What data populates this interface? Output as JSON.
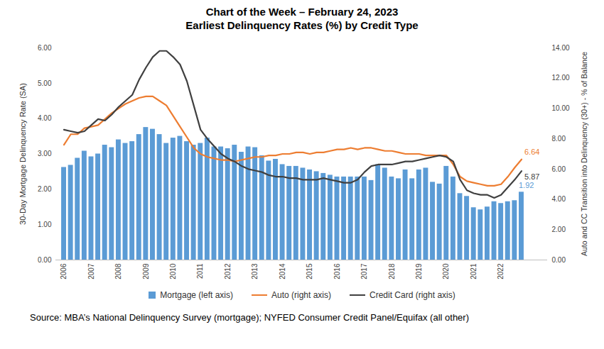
{
  "chart_data": {
    "type": "bar",
    "title": "Chart of the Week – February 24, 2023",
    "subtitle": "Earliest Delinquency Rates (%) by Credit Type",
    "ylabel": "30-Day Mortgage Delinquency Rate (SA)",
    "y2label": "Auto and CC Transition into Delinquency (30+) - % of Balance",
    "caption": "Source: MBA’s National Delinquency Survey (mortgage); NYFED Consumer Credit Panel/Equifax (all other)",
    "x": [
      2006,
      2006.25,
      2006.5,
      2006.75,
      2007,
      2007.25,
      2007.5,
      2007.75,
      2008,
      2008.25,
      2008.5,
      2008.75,
      2009,
      2009.25,
      2009.5,
      2009.75,
      2010,
      2010.25,
      2010.5,
      2010.75,
      2011,
      2011.25,
      2011.5,
      2011.75,
      2012,
      2012.25,
      2012.5,
      2012.75,
      2013,
      2013.25,
      2013.5,
      2013.75,
      2014,
      2014.25,
      2014.5,
      2014.75,
      2015,
      2015.25,
      2015.5,
      2015.75,
      2016,
      2016.25,
      2016.5,
      2016.75,
      2017,
      2017.25,
      2017.5,
      2017.75,
      2018,
      2018.25,
      2018.5,
      2018.75,
      2019,
      2019.25,
      2019.5,
      2019.75,
      2020,
      2020.25,
      2020.5,
      2020.75,
      2021,
      2021.25,
      2021.5,
      2021.75,
      2022,
      2022.25,
      2022.5,
      2022.75
    ],
    "series": [
      {
        "name": "Mortgage (left axis)",
        "type": "bar",
        "color": "#5b9bd5",
        "values": [
          2.62,
          2.68,
          2.88,
          3.08,
          2.92,
          3.0,
          3.25,
          3.18,
          3.4,
          3.3,
          3.35,
          3.55,
          3.75,
          3.7,
          3.55,
          3.3,
          3.45,
          3.5,
          3.35,
          3.25,
          3.3,
          3.45,
          3.2,
          3.2,
          3.15,
          3.25,
          3.05,
          3.2,
          3.18,
          2.95,
          2.8,
          2.85,
          2.7,
          2.65,
          2.65,
          2.6,
          2.55,
          2.5,
          2.45,
          2.4,
          2.35,
          2.35,
          2.35,
          2.35,
          2.35,
          2.25,
          2.7,
          2.6,
          2.35,
          2.3,
          2.55,
          2.3,
          2.55,
          2.6,
          2.2,
          2.15,
          2.65,
          2.35,
          1.88,
          1.8,
          1.48,
          1.42,
          1.5,
          1.65,
          1.6,
          1.65,
          1.68,
          1.92
        ]
      },
      {
        "name": "Auto (right axis)",
        "type": "line",
        "axis": "y2",
        "color": "#ed7d31",
        "values": [
          7.6,
          8.3,
          8.3,
          8.7,
          8.8,
          8.9,
          9.3,
          9.7,
          10.0,
          10.3,
          10.5,
          10.7,
          10.8,
          10.8,
          10.5,
          10.2,
          9.5,
          8.8,
          8.1,
          7.4,
          7.0,
          6.8,
          6.7,
          6.6,
          6.6,
          6.5,
          6.6,
          6.7,
          6.8,
          6.8,
          6.9,
          6.9,
          7.0,
          7.0,
          7.1,
          7.1,
          7.0,
          7.1,
          7.1,
          7.2,
          7.3,
          7.3,
          7.4,
          7.3,
          7.4,
          7.4,
          7.3,
          7.2,
          7.2,
          7.1,
          7.0,
          7.0,
          7.0,
          6.9,
          6.9,
          6.9,
          6.9,
          6.3,
          5.5,
          5.2,
          5.1,
          5.0,
          4.9,
          4.9,
          5.0,
          5.5,
          6.1,
          6.64
        ]
      },
      {
        "name": "Credit Card (right axis)",
        "type": "line",
        "axis": "y2",
        "color": "#404040",
        "values": [
          8.6,
          8.5,
          8.4,
          8.5,
          8.9,
          9.3,
          9.2,
          9.6,
          10.1,
          10.5,
          10.9,
          11.9,
          12.7,
          13.4,
          13.8,
          13.8,
          13.4,
          12.9,
          11.8,
          10.2,
          8.6,
          8.0,
          7.5,
          7.0,
          6.7,
          6.5,
          6.2,
          6.0,
          5.9,
          5.8,
          5.6,
          5.5,
          5.5,
          5.4,
          5.4,
          5.3,
          5.3,
          5.3,
          5.4,
          5.3,
          5.2,
          5.1,
          5.1,
          5.3,
          5.8,
          6.2,
          6.3,
          6.3,
          6.3,
          6.4,
          6.5,
          6.5,
          6.6,
          6.7,
          6.8,
          6.9,
          6.8,
          6.5,
          5.3,
          4.6,
          4.4,
          4.3,
          4.3,
          4.1,
          4.3,
          4.8,
          5.3,
          5.87
        ]
      }
    ],
    "annotations": [
      {
        "text": "1.92",
        "series": "Mortgage (left axis)"
      },
      {
        "text": "6.64",
        "series": "Auto (right axis)"
      },
      {
        "text": "5.87",
        "series": "Credit Card (right axis)"
      }
    ],
    "xlim": [
      2005.7,
      2023.7
    ],
    "xticks": [
      2006,
      2007,
      2008,
      2009,
      2010,
      2011,
      2012,
      2013,
      2014,
      2015,
      2016,
      2017,
      2018,
      2019,
      2020,
      2021,
      2022
    ],
    "ylim": [
      0,
      6
    ],
    "yticks": [
      {
        "value": 0,
        "label": "0.00"
      },
      {
        "value": 1,
        "label": "1.00"
      },
      {
        "value": 2,
        "label": "2.00"
      },
      {
        "value": 3,
        "label": "3.00"
      },
      {
        "value": 4,
        "label": "4.00"
      },
      {
        "value": 5,
        "label": "5.00"
      },
      {
        "value": 6,
        "label": "6.00"
      }
    ],
    "y2lim": [
      0,
      14
    ],
    "y2ticks": [
      {
        "value": 0,
        "label": "0.00"
      },
      {
        "value": 2,
        "label": "2.00"
      },
      {
        "value": 4,
        "label": "4.00"
      },
      {
        "value": 6,
        "label": "6.00"
      },
      {
        "value": 8,
        "label": "8.00"
      },
      {
        "value": 10,
        "label": "10.00"
      },
      {
        "value": 12,
        "label": "12.00"
      },
      {
        "value": 14,
        "label": "14.00"
      }
    ],
    "grid": false,
    "legend": "bottom"
  }
}
